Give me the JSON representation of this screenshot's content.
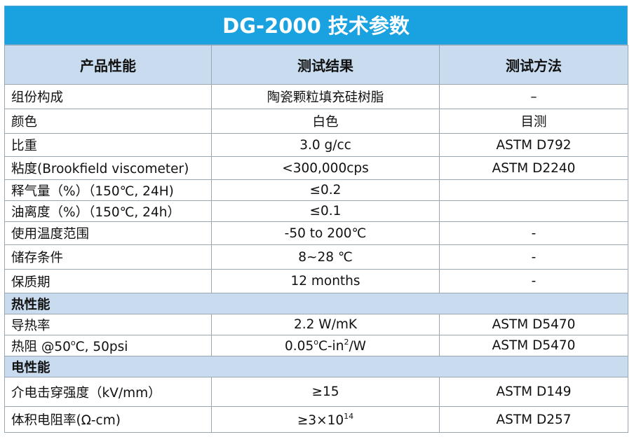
{
  "title": "DG-2000 技术参数",
  "headers": {
    "property": "产品性能",
    "result": "测试结果",
    "method": "测试方法"
  },
  "rows": [
    {
      "property": "组份构成",
      "result": "陶瓷颗粒填充硅树脂",
      "method": "–"
    },
    {
      "property": "颜色",
      "result": "白色",
      "method": "目测"
    },
    {
      "property": "比重",
      "result": "3.0 g/cc",
      "method": "ASTM D792"
    },
    {
      "property": "粘度(Brookfield viscometer)",
      "result": "<300,000cps",
      "method": "ASTM D2240"
    },
    {
      "property": "释气量（%）（150℃, 24H)",
      "result": "≤0.2",
      "method": ""
    },
    {
      "property": "油离度（%）（150℃, 24h）",
      "result": "≤0.1",
      "method": ""
    },
    {
      "property": "使用温度范围",
      "result": "-50 to 200℃",
      "method": "-"
    },
    {
      "property": "储存条件",
      "result": "8~28 ℃",
      "method": "-"
    },
    {
      "property": "保质期",
      "result": "12 months",
      "method": "-"
    }
  ],
  "section_thermal": "热性能",
  "thermal": [
    {
      "property": "导热率",
      "result": "2.2 W/mK",
      "method": "ASTM D5470"
    }
  ],
  "thermal_resistance": {
    "property_a": "热阻 @50",
    "property_sup": "o",
    "property_b": "C, 50psi",
    "result_a": "0.05",
    "result_sup1": "o",
    "result_b": "C-in",
    "result_sup2": "2",
    "result_c": "/W",
    "method": "ASTM D5470"
  },
  "section_electrical": "电性能",
  "dielectric": {
    "property": "介电击穿强度（kV/mm）",
    "result": "≥15",
    "method": "ASTM D149"
  },
  "resistivity": {
    "property": "体积电阻率(Ω-cm)",
    "result_a": "≥3×10",
    "result_sup": "14",
    "method": "ASTM D257"
  }
}
